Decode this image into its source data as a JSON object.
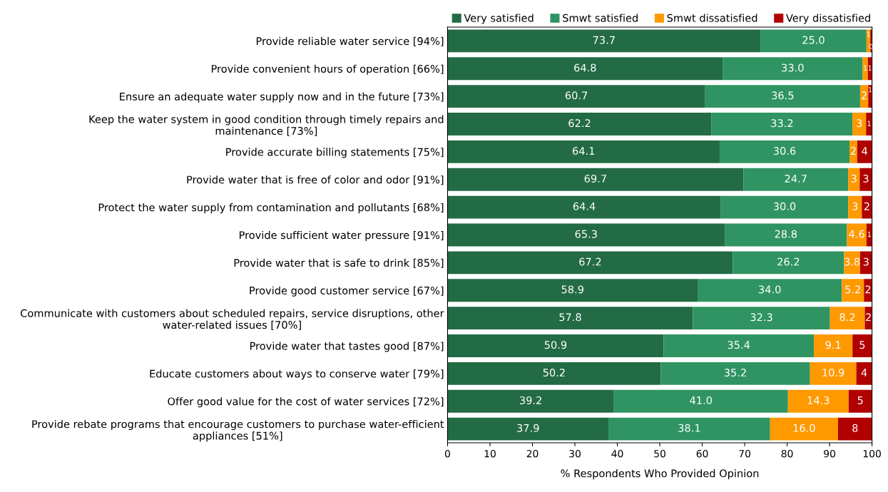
{
  "chart_data": {
    "type": "bar",
    "orientation": "horizontal",
    "stacked": true,
    "xlabel": "% Respondents Who Provided Opinion",
    "categories": [
      "Provide reliable water service [94%]",
      "Provide convenient hours of operation [66%]",
      "Ensure an adequate water supply now and in the future [73%]",
      "Keep the water system in good condition through timely repairs and\nmaintenance [73%]",
      "Provide accurate billing statements [75%]",
      "Provide water that is free of color and odor [91%]",
      "Protect the water supply from contamination and pollutants [68%]",
      "Provide sufficient water pressure [91%]",
      "Provide water that is safe to drink [85%]",
      "Provide good customer service [67%]",
      "Communicate with customers about scheduled repairs, service disruptions, other\nwater-related issues [70%]",
      "Provide water that tastes good [87%]",
      "Educate customers about ways to conserve water [79%]",
      "Offer good value for the cost of water services [72%]",
      "Provide rebate programs that encourage customers to purchase water-efficient\nappliances [51%]"
    ],
    "series": [
      {
        "name": "Very satisfied",
        "color": "#236b45",
        "values": [
          73.7,
          64.8,
          60.7,
          62.2,
          64.1,
          69.7,
          64.4,
          65.3,
          67.2,
          58.9,
          57.8,
          50.9,
          50.2,
          39.2,
          37.9
        ],
        "value_labels": [
          "73.7",
          "64.8",
          "60.7",
          "62.2",
          "64.1",
          "69.7",
          "64.4",
          "65.3",
          "67.2",
          "58.9",
          "57.8",
          "50.9",
          "50.2",
          "39.2",
          "37.9"
        ]
      },
      {
        "name": "Smwt satisfied",
        "color": "#2f9462",
        "values": [
          25.0,
          33.0,
          36.5,
          33.2,
          30.6,
          24.7,
          30.0,
          28.8,
          26.2,
          34.0,
          32.3,
          35.4,
          35.2,
          41.0,
          38.1
        ],
        "value_labels": [
          "25.0",
          "33.0",
          "36.5",
          "33.2",
          "30.6",
          "24.7",
          "30.0",
          "28.8",
          "26.2",
          "34.0",
          "32.3",
          "35.4",
          "35.2",
          "41.0",
          "38.1"
        ]
      },
      {
        "name": "Smwt dissatisfied",
        "color": "#ff9900",
        "values": [
          0.9,
          1.2,
          1.9,
          3.2,
          1.8,
          2.7,
          3.2,
          4.6,
          3.8,
          5.2,
          8.2,
          9.1,
          10.9,
          14.3,
          16.0
        ],
        "value_labels": [
          "1",
          "1",
          "2",
          "3",
          "2",
          "3",
          "3",
          "4.6",
          "3.8",
          "5.2",
          "8.2",
          "9.1",
          "10.9",
          "14.3",
          "16.0"
        ]
      },
      {
        "name": "Very dissatisfied",
        "color": "#b00000",
        "values": [
          0.4,
          1.0,
          0.9,
          1.4,
          3.5,
          2.9,
          2.4,
          1.3,
          2.8,
          1.9,
          1.7,
          4.6,
          3.7,
          5.5,
          8.0
        ],
        "value_labels": [
          "0",
          "1",
          "1",
          "1",
          "4",
          "3",
          "2",
          "1",
          "3",
          "2",
          "2",
          "5",
          "4",
          "5",
          "8"
        ]
      }
    ],
    "xlim": [
      0,
      100
    ],
    "xticks": [
      0,
      10,
      20,
      30,
      40,
      50,
      60,
      70,
      80,
      90,
      100
    ],
    "grid": false,
    "legend": "top right"
  }
}
